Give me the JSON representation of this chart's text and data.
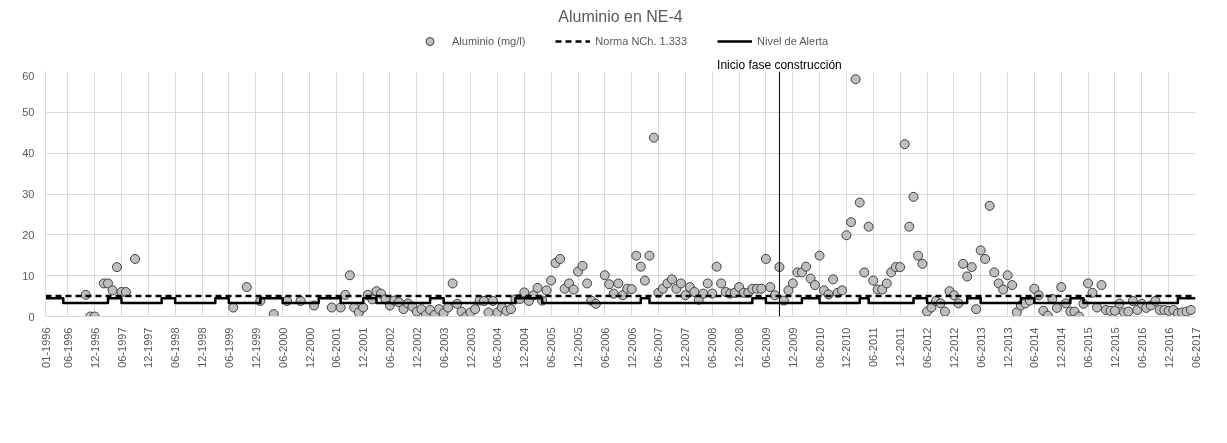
{
  "chart_data": {
    "type": "scatter",
    "title": "Aluminio en NE-4",
    "legend": "top",
    "grid": true,
    "xlim": [
      "1996-01",
      "2017-06"
    ],
    "ylim": [
      0,
      60
    ],
    "yticks": [
      0,
      10,
      20,
      30,
      40,
      50,
      60
    ],
    "xticks": [
      {
        "value": "1996-01",
        "label": "01-1996"
      },
      {
        "value": "1996-06",
        "label": "06-1996"
      },
      {
        "value": "1996-12",
        "label": "12-1996"
      },
      {
        "value": "1997-06",
        "label": "06-1997"
      },
      {
        "value": "1997-12",
        "label": "12-1997"
      },
      {
        "value": "1998-06",
        "label": "06-1998"
      },
      {
        "value": "1998-12",
        "label": "12-1998"
      },
      {
        "value": "1999-06",
        "label": "06-1999"
      },
      {
        "value": "1999-12",
        "label": "12-1999"
      },
      {
        "value": "2000-06",
        "label": "06-2000"
      },
      {
        "value": "2000-12",
        "label": "12-2000"
      },
      {
        "value": "2001-06",
        "label": "06-2001"
      },
      {
        "value": "2001-12",
        "label": "12-2001"
      },
      {
        "value": "2002-06",
        "label": "06-2002"
      },
      {
        "value": "2002-12",
        "label": "12-2002"
      },
      {
        "value": "2003-06",
        "label": "06-2003"
      },
      {
        "value": "2003-12",
        "label": "12-2003"
      },
      {
        "value": "2004-06",
        "label": "06-2004"
      },
      {
        "value": "2004-12",
        "label": "12-2004"
      },
      {
        "value": "2005-06",
        "label": "06-2005"
      },
      {
        "value": "2005-12",
        "label": "12-2005"
      },
      {
        "value": "2006-06",
        "label": "06-2006"
      },
      {
        "value": "2006-12",
        "label": "12-2006"
      },
      {
        "value": "2007-06",
        "label": "06-2007"
      },
      {
        "value": "2007-12",
        "label": "12-2007"
      },
      {
        "value": "2008-06",
        "label": "06-2008"
      },
      {
        "value": "2008-12",
        "label": "12-2008"
      },
      {
        "value": "2009-06",
        "label": "06-2009"
      },
      {
        "value": "2009-12",
        "label": "12-2009"
      },
      {
        "value": "2010-06",
        "label": "06-2010"
      },
      {
        "value": "2010-12",
        "label": "12-2010"
      },
      {
        "value": "2011-06",
        "label": "06-2011"
      },
      {
        "value": "2011-12",
        "label": "12-2011"
      },
      {
        "value": "2012-06",
        "label": "06-2012"
      },
      {
        "value": "2012-12",
        "label": "12-2012"
      },
      {
        "value": "2013-06",
        "label": "06-2013"
      },
      {
        "value": "2013-12",
        "label": "12-2013"
      },
      {
        "value": "2014-06",
        "label": "06-2014"
      },
      {
        "value": "2014-12",
        "label": "12-2014"
      },
      {
        "value": "2015-06",
        "label": "06-2015"
      },
      {
        "value": "2015-12",
        "label": "12-2015"
      },
      {
        "value": "2016-06",
        "label": "06-2016"
      },
      {
        "value": "2016-12",
        "label": "12-2016"
      },
      {
        "value": "2017-06",
        "label": "06-2017"
      }
    ],
    "ref_lines": [
      {
        "axis": "x",
        "value": "2009-09",
        "label": "Inicio fase construcción",
        "color": "#000000"
      }
    ],
    "series": [
      {
        "name": "Aluminio (mg/l)",
        "marker": "circle",
        "color": "#bfbfbf",
        "x": [
          "1996-10",
          "1996-11",
          "1996-12",
          "1997-02",
          "1997-03",
          "1997-04",
          "1997-05",
          "1997-06",
          "1997-07",
          "1997-09",
          "1999-07",
          "1999-10",
          "2000-01",
          "2000-04",
          "2000-07",
          "2000-10",
          "2001-01",
          "2001-05",
          "2001-07",
          "2001-08",
          "2001-09",
          "2001-10",
          "2001-11",
          "2001-12",
          "2002-01",
          "2002-02",
          "2002-03",
          "2002-04",
          "2002-05",
          "2002-06",
          "2002-07",
          "2002-08",
          "2002-09",
          "2002-10",
          "2002-11",
          "2002-12",
          "2003-01",
          "2003-02",
          "2003-03",
          "2003-04",
          "2003-05",
          "2003-06",
          "2003-07",
          "2003-08",
          "2003-09",
          "2003-10",
          "2003-11",
          "2003-12",
          "2004-01",
          "2004-02",
          "2004-03",
          "2004-04",
          "2004-05",
          "2004-06",
          "2004-07",
          "2004-08",
          "2004-09",
          "2004-10",
          "2004-11",
          "2004-12",
          "2005-01",
          "2005-02",
          "2005-03",
          "2005-04",
          "2005-05",
          "2005-06",
          "2005-07",
          "2005-08",
          "2005-09",
          "2005-10",
          "2005-11",
          "2005-12",
          "2006-01",
          "2006-02",
          "2006-03",
          "2006-04",
          "2006-06",
          "2006-07",
          "2006-08",
          "2006-09",
          "2006-10",
          "2006-11",
          "2006-12",
          "2007-01",
          "2007-02",
          "2007-03",
          "2007-04",
          "2007-05",
          "2007-06",
          "2007-07",
          "2007-08",
          "2007-09",
          "2007-10",
          "2007-11",
          "2007-12",
          "2008-01",
          "2008-02",
          "2008-03",
          "2008-04",
          "2008-05",
          "2008-06",
          "2008-07",
          "2008-08",
          "2008-09",
          "2008-10",
          "2008-11",
          "2008-12",
          "2009-01",
          "2009-02",
          "2009-03",
          "2009-04",
          "2009-05",
          "2009-06",
          "2009-07",
          "2009-08",
          "2009-09",
          "2009-10",
          "2009-11",
          "2009-12",
          "2010-01",
          "2010-02",
          "2010-03",
          "2010-04",
          "2010-05",
          "2010-06",
          "2010-07",
          "2010-08",
          "2010-09",
          "2010-10",
          "2010-11",
          "2010-12",
          "2011-01",
          "2011-02",
          "2011-03",
          "2011-04",
          "2011-05",
          "2011-06",
          "2011-07",
          "2011-08",
          "2011-09",
          "2011-10",
          "2011-11",
          "2011-12",
          "2012-01",
          "2012-02",
          "2012-03",
          "2012-04",
          "2012-05",
          "2012-06",
          "2012-07",
          "2012-08",
          "2012-09",
          "2012-10",
          "2012-11",
          "2012-12",
          "2013-01",
          "2013-02",
          "2013-03",
          "2013-04",
          "2013-05",
          "2013-06",
          "2013-07",
          "2013-08",
          "2013-09",
          "2013-10",
          "2013-11",
          "2013-12",
          "2014-01",
          "2014-02",
          "2014-03",
          "2014-04",
          "2014-05",
          "2014-06",
          "2014-07",
          "2014-08",
          "2014-09",
          "2014-10",
          "2014-11",
          "2014-12",
          "2015-01",
          "2015-02",
          "2015-03",
          "2015-04",
          "2015-05",
          "2015-06",
          "2015-07",
          "2015-08",
          "2015-09",
          "2015-10",
          "2015-11",
          "2015-12",
          "2016-01",
          "2016-02",
          "2016-03",
          "2016-04",
          "2016-05",
          "2016-06",
          "2016-07",
          "2016-08",
          "2016-09",
          "2016-10",
          "2016-11",
          "2016-12",
          "2017-01",
          "2017-02",
          "2017-03",
          "2017-04",
          "2017-05"
        ],
        "values": [
          5.3,
          0,
          0,
          8.1,
          8.1,
          6.4,
          12.1,
          6,
          6,
          14.1,
          2.2,
          7.2,
          3.8,
          0.6,
          3.8,
          3.8,
          2.7,
          2.2,
          2.2,
          5.3,
          10.1,
          2.2,
          1,
          2.2,
          5.3,
          4.2,
          6.2,
          5.6,
          4.2,
          2.7,
          3.9,
          3.5,
          1.8,
          3.2,
          2.4,
          1.2,
          1.8,
          0.4,
          1.6,
          0.4,
          1.8,
          0.8,
          2.2,
          8.1,
          3.1,
          1.2,
          0,
          1,
          1.8,
          3.9,
          3.8,
          1,
          3.8,
          1,
          2.2,
          1.4,
          1.8,
          4.2,
          4.3,
          5.9,
          3.8,
          5.2,
          7,
          3.9,
          6.4,
          8.8,
          13.1,
          14.1,
          6.8,
          8.1,
          6.6,
          11,
          12.4,
          8.1,
          3.9,
          3.1,
          10.1,
          7.9,
          5.6,
          8.1,
          5.2,
          6.8,
          6.7,
          14.9,
          12.2,
          8.8,
          14.9,
          43.8,
          5.8,
          6.8,
          8.1,
          9.1,
          6.8,
          8.1,
          5.2,
          7.2,
          6,
          4.1,
          5.6,
          8.1,
          5.6,
          12.2,
          8.1,
          6,
          5.6,
          5.8,
          7.2,
          5.8,
          5.8,
          6.8,
          6.8,
          6.8,
          14.1,
          7.2,
          5.2,
          12.1,
          3.9,
          6.4,
          8.1,
          10.8,
          10.8,
          12.2,
          9.3,
          7.7,
          14.9,
          6.4,
          5.4,
          9.1,
          5.8,
          6.4,
          19.9,
          23.1,
          58.1,
          27.9,
          10.8,
          22,
          8.8,
          6.6,
          6.6,
          8.1,
          10.8,
          12.1,
          12.1,
          42.2,
          22,
          29.3,
          14.9,
          12.9,
          1.2,
          2.2,
          3.8,
          3.2,
          1.2,
          6.2,
          5.2,
          3.2,
          12.9,
          9.8,
          12.1,
          1.8,
          16.2,
          14.1,
          27.1,
          10.8,
          8.1,
          6.6,
          10.1,
          7.7,
          1,
          2.7,
          3.2,
          3.9,
          6.8,
          5.2,
          1.4,
          0.2,
          4.3,
          2.1,
          7.2,
          3.2,
          1.2,
          1.2,
          0,
          3.1,
          8.1,
          5.8,
          2.2,
          7.7,
          1.6,
          1.4,
          1.4,
          3.2,
          1,
          1.2,
          3.8,
          1.6,
          3.1,
          2.1,
          2.7,
          3.8,
          1.6,
          1.6,
          1.4,
          1.6,
          0.8,
          1,
          1.2,
          1.6
        ]
      },
      {
        "name": "Norma NCh. 1.333",
        "type": "line",
        "line_style": "dashed",
        "color": "#000000",
        "x": [
          "1996-01",
          "2017-06"
        ],
        "values": [
          5,
          5
        ]
      },
      {
        "name": "Nivel de Alerta",
        "type": "step",
        "line_style": "solid",
        "color": "#000000",
        "x": [
          "1996-01",
          "1996-05",
          "1997-03",
          "1997-06",
          "1998-03",
          "1998-06",
          "1999-03",
          "1999-06",
          "2000-01",
          "2000-06",
          "2001-02",
          "2001-07",
          "2001-12",
          "2002-03",
          "2003-03",
          "2003-06",
          "2004-10",
          "2005-04",
          "2007-02",
          "2007-04",
          "2009-03",
          "2009-06",
          "2010-02",
          "2010-06",
          "2011-03",
          "2011-05",
          "2012-03",
          "2012-06",
          "2013-03",
          "2013-06",
          "2014-03",
          "2014-06",
          "2015-02",
          "2015-05",
          "2017-02",
          "2017-06"
        ],
        "values": [
          4.5,
          3.3,
          4.5,
          3.3,
          4.5,
          3.3,
          4.5,
          3.3,
          4.5,
          3.3,
          4.5,
          3.3,
          4.5,
          3.3,
          4.5,
          3.3,
          4.5,
          3.3,
          4.5,
          3.3,
          4.5,
          3.3,
          4.5,
          3.3,
          4.5,
          3.3,
          4.5,
          3.3,
          4.5,
          3.3,
          4.5,
          3.3,
          4.5,
          3.3,
          4.5,
          4.5
        ]
      }
    ]
  }
}
